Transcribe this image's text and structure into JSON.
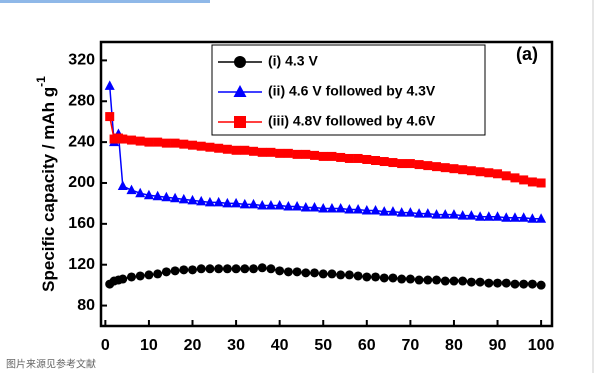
{
  "chart_data": {
    "type": "line",
    "y_label": "Specific capacity / mAh g",
    "y_label_superscript": "-1",
    "annotation": "(a)",
    "caption": "图片来源见参考文献",
    "x": [
      1,
      2,
      3,
      4,
      6,
      8,
      10,
      12,
      14,
      16,
      18,
      20,
      22,
      24,
      26,
      28,
      30,
      32,
      34,
      36,
      38,
      40,
      42,
      44,
      46,
      48,
      50,
      52,
      54,
      56,
      58,
      60,
      62,
      64,
      66,
      68,
      70,
      72,
      74,
      76,
      78,
      80,
      82,
      84,
      86,
      88,
      90,
      92,
      94,
      96,
      98,
      100
    ],
    "series": [
      {
        "name": "(i) 4.3 V",
        "color": "#000000",
        "marker": "circle",
        "values": [
          101,
          104,
          105,
          106,
          108,
          109,
          110,
          111,
          113,
          114,
          115,
          115,
          116,
          116,
          116,
          116,
          116,
          116,
          116,
          117,
          116,
          114,
          113,
          113,
          112,
          112,
          111,
          111,
          110,
          110,
          109,
          108,
          108,
          107,
          107,
          106,
          106,
          105,
          105,
          105,
          104,
          104,
          104,
          103,
          103,
          102,
          102,
          102,
          101,
          101,
          101,
          100
        ]
      },
      {
        "name": "(ii) 4.6 V followed by 4.3V",
        "color": "#0000ff",
        "marker": "triangle",
        "values": [
          295,
          240,
          248,
          197,
          193,
          190,
          188,
          187,
          186,
          185,
          184,
          183,
          182,
          181,
          181,
          180,
          180,
          179,
          179,
          178,
          178,
          178,
          177,
          177,
          176,
          176,
          175,
          175,
          175,
          174,
          174,
          173,
          173,
          172,
          172,
          171,
          171,
          170,
          170,
          169,
          169,
          169,
          168,
          168,
          167,
          167,
          167,
          166,
          166,
          166,
          165,
          165
        ]
      },
      {
        "name": "(iii) 4.8V followed by 4.6V",
        "color": "#ff0000",
        "marker": "square",
        "values": [
          265,
          243,
          244,
          243,
          242,
          241,
          240,
          240,
          239,
          239,
          238,
          237,
          236,
          235,
          234,
          233,
          232,
          232,
          231,
          230,
          230,
          229,
          229,
          228,
          228,
          227,
          226,
          226,
          225,
          224,
          224,
          223,
          222,
          221,
          220,
          219,
          219,
          218,
          217,
          216,
          215,
          214,
          213,
          212,
          211,
          210,
          209,
          207,
          205,
          203,
          201,
          200
        ]
      }
    ],
    "xlim": [
      -1,
      102.5
    ],
    "ylim": [
      60,
      338
    ],
    "xticks": [
      0,
      10,
      20,
      30,
      40,
      50,
      60,
      70,
      80,
      90,
      100
    ],
    "yticks": [
      80,
      120,
      160,
      200,
      240,
      280,
      320
    ]
  }
}
